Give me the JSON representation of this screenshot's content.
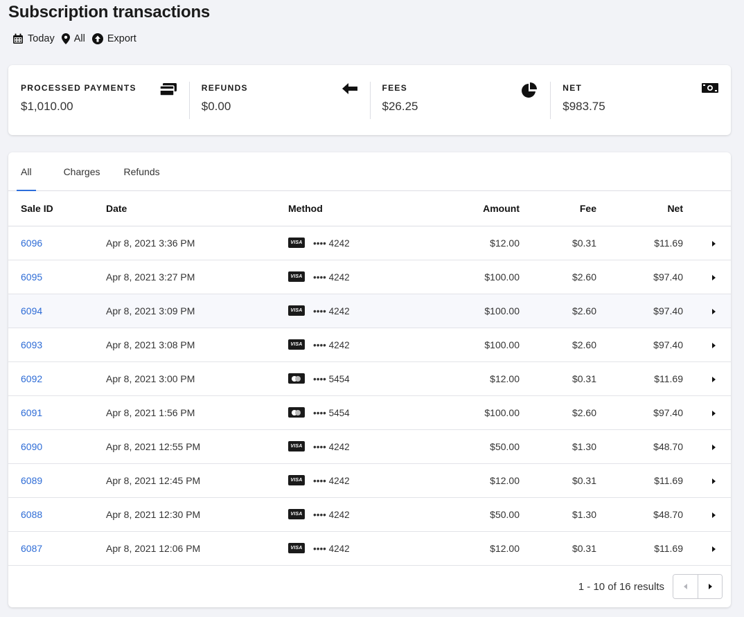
{
  "header": {
    "title": "Subscription transactions",
    "toolbar": {
      "date_label": "Today",
      "location_label": "All",
      "export_label": "Export"
    }
  },
  "summary": [
    {
      "label": "PROCESSED PAYMENTS",
      "value": "$1,010.00",
      "icon": "credit-cards-icon"
    },
    {
      "label": "REFUNDS",
      "value": "$0.00",
      "icon": "arrow-left-icon"
    },
    {
      "label": "FEES",
      "value": "$26.25",
      "icon": "pie-chart-icon"
    },
    {
      "label": "NET",
      "value": "$983.75",
      "icon": "cash-icon"
    }
  ],
  "tabs": [
    {
      "label": "All",
      "active": true
    },
    {
      "label": "Charges",
      "active": false
    },
    {
      "label": "Refunds",
      "active": false
    }
  ],
  "table": {
    "columns": [
      "Sale ID",
      "Date",
      "Method",
      "Amount",
      "Fee",
      "Net"
    ],
    "rows": [
      {
        "id": "6096",
        "date": "Apr 8, 2021 3:36 PM",
        "brand": "visa",
        "brand_label": "VISA",
        "masked": "•••• 4242",
        "amount": "$12.00",
        "fee": "$0.31",
        "net": "$11.69"
      },
      {
        "id": "6095",
        "date": "Apr 8, 2021 3:27 PM",
        "brand": "visa",
        "brand_label": "VISA",
        "masked": "•••• 4242",
        "amount": "$100.00",
        "fee": "$2.60",
        "net": "$97.40"
      },
      {
        "id": "6094",
        "date": "Apr 8, 2021 3:09 PM",
        "brand": "visa",
        "brand_label": "VISA",
        "masked": "•••• 4242",
        "amount": "$100.00",
        "fee": "$2.60",
        "net": "$97.40"
      },
      {
        "id": "6093",
        "date": "Apr 8, 2021 3:08 PM",
        "brand": "visa",
        "brand_label": "VISA",
        "masked": "•••• 4242",
        "amount": "$100.00",
        "fee": "$2.60",
        "net": "$97.40"
      },
      {
        "id": "6092",
        "date": "Apr 8, 2021 3:00 PM",
        "brand": "mastercard",
        "brand_label": "",
        "masked": "•••• 5454",
        "amount": "$12.00",
        "fee": "$0.31",
        "net": "$11.69"
      },
      {
        "id": "6091",
        "date": "Apr 8, 2021 1:56 PM",
        "brand": "mastercard",
        "brand_label": "",
        "masked": "•••• 5454",
        "amount": "$100.00",
        "fee": "$2.60",
        "net": "$97.40"
      },
      {
        "id": "6090",
        "date": "Apr 8, 2021 12:55 PM",
        "brand": "visa",
        "brand_label": "VISA",
        "masked": "•••• 4242",
        "amount": "$50.00",
        "fee": "$1.30",
        "net": "$48.70"
      },
      {
        "id": "6089",
        "date": "Apr 8, 2021 12:45 PM",
        "brand": "visa",
        "brand_label": "VISA",
        "masked": "•••• 4242",
        "amount": "$12.00",
        "fee": "$0.31",
        "net": "$11.69"
      },
      {
        "id": "6088",
        "date": "Apr 8, 2021 12:30 PM",
        "brand": "visa",
        "brand_label": "VISA",
        "masked": "•••• 4242",
        "amount": "$50.00",
        "fee": "$1.30",
        "net": "$48.70"
      },
      {
        "id": "6087",
        "date": "Apr 8, 2021 12:06 PM",
        "brand": "visa",
        "brand_label": "VISA",
        "masked": "•••• 4242",
        "amount": "$12.00",
        "fee": "$0.31",
        "net": "$11.69"
      }
    ]
  },
  "pagination": {
    "results_text": "1 - 10 of 16 results"
  },
  "colors": {
    "link": "#2e6cd6",
    "tab_indicator": "#2c6ddb",
    "background": "#f2f3f7"
  }
}
